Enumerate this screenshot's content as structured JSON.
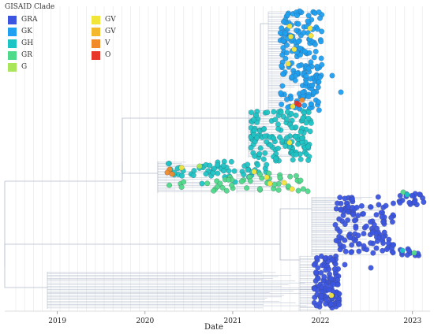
{
  "chart_data": {
    "type": "scatter",
    "title": "",
    "xlabel": "Date",
    "ylabel": "",
    "x_ticks": [
      "2019",
      "2020",
      "2021",
      "2022",
      "2023"
    ],
    "xlim": [
      2018.4,
      2023.25
    ],
    "grid": "vertical, light gray",
    "legend_title": "GISAID Clade",
    "legend_position": "top-left",
    "legend": [
      {
        "name": "GRA",
        "color": "#3b55e0"
      },
      {
        "name": "GK",
        "color": "#1fa0f0"
      },
      {
        "name": "GH",
        "color": "#1dc4c4"
      },
      {
        "name": "GR",
        "color": "#4fd98a"
      },
      {
        "name": "G",
        "color": "#a9e65a"
      },
      {
        "name": "GV",
        "color": "#f2e53a"
      },
      {
        "name": "GV",
        "color": "#f3b82b"
      },
      {
        "name": "V",
        "color": "#f08a2a"
      },
      {
        "name": "O",
        "color": "#e8352a"
      }
    ],
    "clusters": [
      {
        "clade": "GK",
        "date_range": [
          "2021.6",
          "2021.9"
        ],
        "count": 200,
        "region": "upper"
      },
      {
        "clade": "GH",
        "date_range": [
          "2020.2",
          "2021.8"
        ],
        "count": 160,
        "region": "middle"
      },
      {
        "clade": "GR",
        "date_range": [
          "2020.2",
          "2021.7"
        ],
        "count": 35,
        "region": "middle-lower"
      },
      {
        "clade": "GRA",
        "date_range": [
          "2022.1",
          "2023.1"
        ],
        "count": 160,
        "region": "lower-right"
      },
      {
        "clade": "GRA",
        "date_range": [
          "2021.8",
          "2022.1"
        ],
        "count": 120,
        "region": "bottom"
      }
    ]
  }
}
